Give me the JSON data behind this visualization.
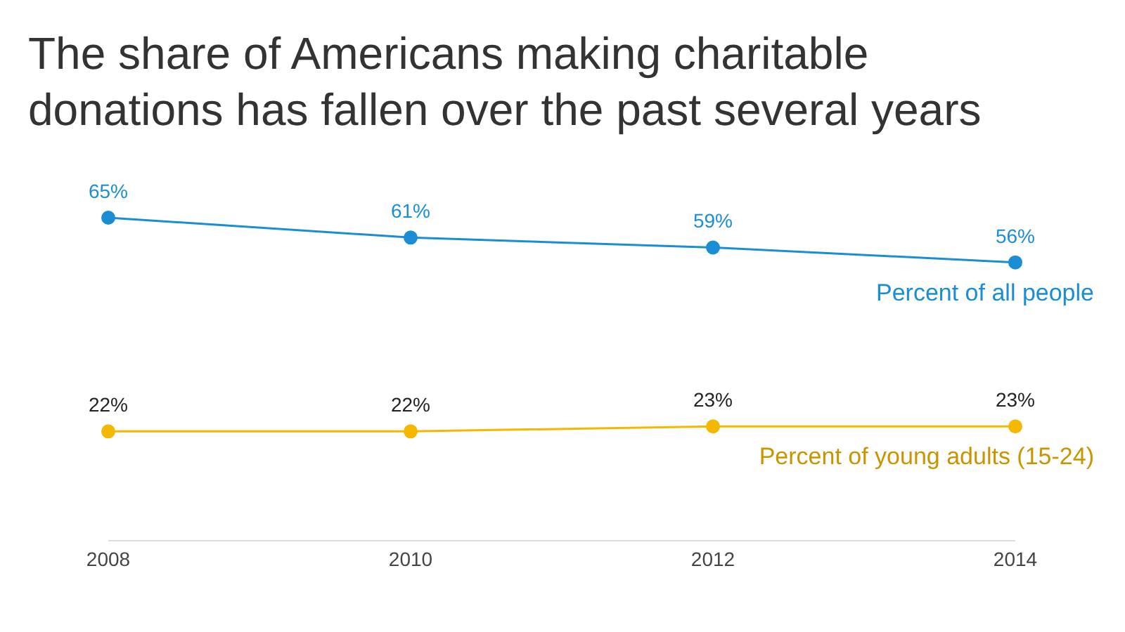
{
  "chart_data": {
    "type": "line",
    "title": "The share of Americans making charitable donations has fallen over the past several years",
    "categories": [
      "2008",
      "2010",
      "2012",
      "2014"
    ],
    "series": [
      {
        "name": "Percent of all people",
        "color": "#1a8dd4",
        "values": [
          65,
          61,
          59,
          56
        ],
        "value_labels": [
          "65%",
          "61%",
          "59%",
          "56%"
        ]
      },
      {
        "name": "Percent of young adults (15-24)",
        "color": "#f5b800",
        "values": [
          22,
          22,
          23,
          23
        ],
        "value_labels": [
          "22%",
          "22%",
          "23%",
          "23%"
        ]
      }
    ],
    "tick_labels": "x",
    "legend": false,
    "grid": false,
    "marker": "circle",
    "line_style": "solid"
  }
}
